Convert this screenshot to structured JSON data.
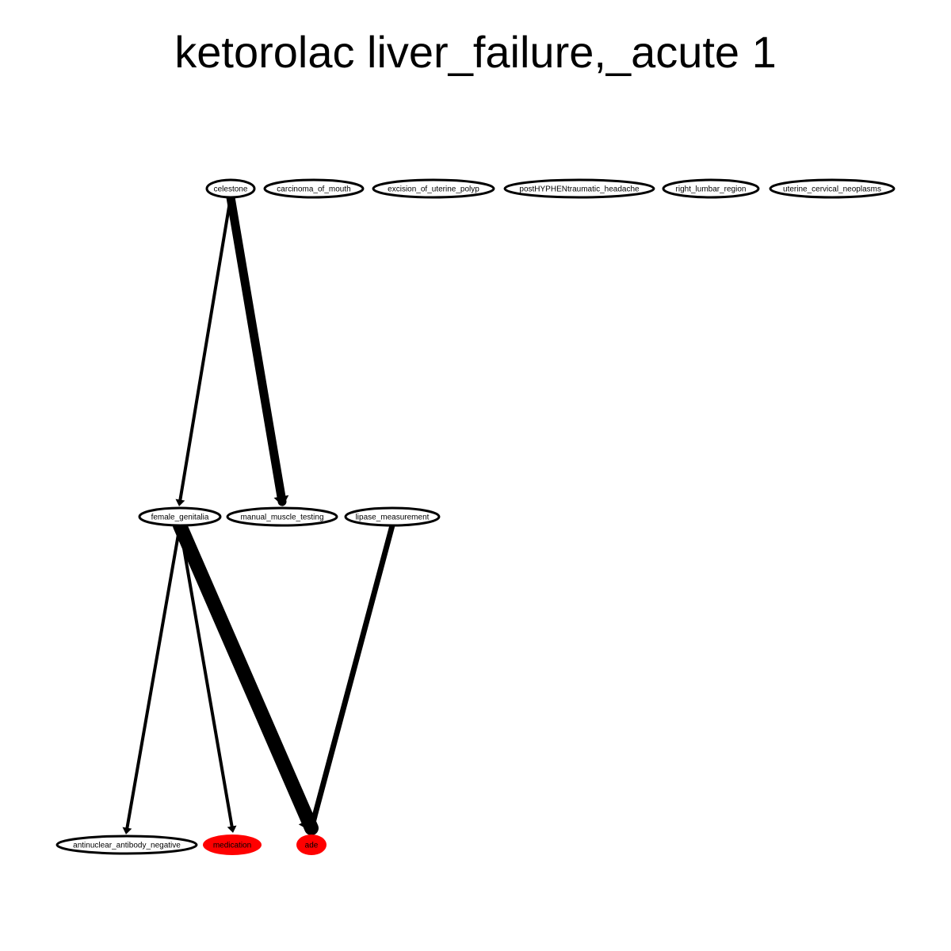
{
  "title": "ketorolac liver_failure,_acute 1",
  "colors": {
    "edge": "#000000",
    "node_outline": "#000000",
    "node_fill_default": "#ffffff",
    "node_fill_highlight": "#ff0000"
  },
  "nodes": [
    {
      "id": "celestone",
      "label": "celestone",
      "highlight": false
    },
    {
      "id": "carcinoma_of_mouth",
      "label": "carcinoma_of_mouth",
      "highlight": false
    },
    {
      "id": "excision_of_uterine_polyp",
      "label": "excision_of_uterine_polyp",
      "highlight": false
    },
    {
      "id": "posthyphentraumatic_headache",
      "label": "postHYPHENtraumatic_headache",
      "highlight": false
    },
    {
      "id": "right_lumbar_region",
      "label": "right_lumbar_region",
      "highlight": false
    },
    {
      "id": "uterine_cervical_neoplasms",
      "label": "uterine_cervical_neoplasms",
      "highlight": false
    },
    {
      "id": "female_genitalia",
      "label": "female_genitalia",
      "highlight": false
    },
    {
      "id": "manual_muscle_testing",
      "label": "manual_muscle_testing",
      "highlight": false
    },
    {
      "id": "lipase_measurement",
      "label": "lipase_measurement",
      "highlight": false
    },
    {
      "id": "antinuclear_antibody_negative",
      "label": "antinuclear_antibody_negative",
      "highlight": false
    },
    {
      "id": "medication",
      "label": "medication",
      "highlight": true
    },
    {
      "id": "ade",
      "label": "ade",
      "highlight": true
    }
  ],
  "edges": [
    {
      "from": "celestone",
      "to": "female_genitalia",
      "weight": 1
    },
    {
      "from": "celestone",
      "to": "manual_muscle_testing",
      "weight": 3
    },
    {
      "from": "female_genitalia",
      "to": "antinuclear_antibody_negative",
      "weight": 1
    },
    {
      "from": "female_genitalia",
      "to": "medication",
      "weight": 1
    },
    {
      "from": "female_genitalia",
      "to": "ade",
      "weight": 6
    },
    {
      "from": "lipase_measurement",
      "to": "ade",
      "weight": 2
    }
  ]
}
